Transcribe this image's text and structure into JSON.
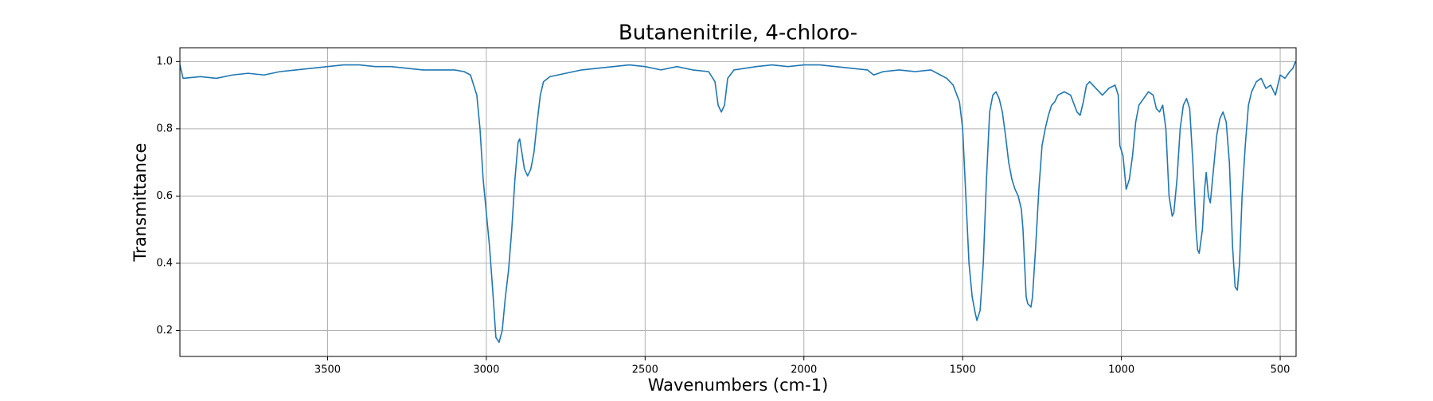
{
  "chart_data": {
    "type": "line",
    "title": "Butanenitrile, 4-chloro-",
    "x_label": "Wavenumbers (cm-1)",
    "y_label": "Transmittance",
    "color": "#1f77b4",
    "grid": true,
    "xlim": [
      3965,
      450
    ],
    "ylim": [
      0.123,
      1.041
    ],
    "xticks": [
      3500,
      3000,
      2500,
      2000,
      1500,
      1000,
      500
    ],
    "yticks": [
      0.2,
      0.4,
      0.6,
      0.8,
      {
        "value": 1,
        "label": "1.0"
      }
    ],
    "x": [
      3965,
      3955,
      3900,
      3850,
      3800,
      3750,
      3700,
      3650,
      3600,
      3550,
      3500,
      3450,
      3400,
      3350,
      3300,
      3250,
      3200,
      3150,
      3100,
      3070,
      3050,
      3030,
      3020,
      3010,
      3000,
      2990,
      2980,
      2970,
      2960,
      2950,
      2940,
      2930,
      2920,
      2910,
      2900,
      2895,
      2890,
      2880,
      2870,
      2860,
      2850,
      2840,
      2830,
      2820,
      2800,
      2750,
      2700,
      2650,
      2600,
      2550,
      2500,
      2450,
      2400,
      2350,
      2300,
      2280,
      2270,
      2260,
      2250,
      2240,
      2220,
      2150,
      2100,
      2050,
      2000,
      1950,
      1900,
      1850,
      1800,
      1780,
      1750,
      1700,
      1650,
      1600,
      1570,
      1550,
      1530,
      1510,
      1500,
      1490,
      1480,
      1470,
      1460,
      1455,
      1445,
      1435,
      1425,
      1415,
      1405,
      1395,
      1385,
      1375,
      1365,
      1355,
      1345,
      1335,
      1325,
      1315,
      1310,
      1305,
      1300,
      1295,
      1285,
      1280,
      1270,
      1260,
      1250,
      1240,
      1230,
      1220,
      1210,
      1200,
      1180,
      1160,
      1140,
      1130,
      1120,
      1110,
      1100,
      1080,
      1060,
      1040,
      1020,
      1010,
      1005,
      995,
      985,
      975,
      965,
      955,
      945,
      930,
      915,
      900,
      890,
      880,
      870,
      860,
      850,
      840,
      835,
      825,
      815,
      805,
      795,
      785,
      775,
      765,
      760,
      755,
      745,
      738,
      733,
      726,
      720,
      712,
      700,
      690,
      680,
      670,
      660,
      650,
      642,
      635,
      628,
      620,
      610,
      600,
      590,
      575,
      560,
      545,
      530,
      515,
      500,
      485,
      470,
      460,
      452
    ],
    "values": [
      0.99,
      0.95,
      0.955,
      0.95,
      0.96,
      0.965,
      0.96,
      0.97,
      0.975,
      0.98,
      0.985,
      0.99,
      0.99,
      0.985,
      0.985,
      0.98,
      0.975,
      0.975,
      0.975,
      0.97,
      0.96,
      0.9,
      0.8,
      0.65,
      0.55,
      0.45,
      0.32,
      0.18,
      0.165,
      0.2,
      0.3,
      0.38,
      0.5,
      0.65,
      0.76,
      0.77,
      0.74,
      0.68,
      0.66,
      0.68,
      0.73,
      0.82,
      0.9,
      0.94,
      0.955,
      0.965,
      0.975,
      0.98,
      0.985,
      0.99,
      0.985,
      0.975,
      0.985,
      0.975,
      0.97,
      0.94,
      0.87,
      0.85,
      0.87,
      0.95,
      0.975,
      0.985,
      0.99,
      0.985,
      0.99,
      0.99,
      0.985,
      0.98,
      0.975,
      0.96,
      0.97,
      0.975,
      0.97,
      0.975,
      0.96,
      0.95,
      0.93,
      0.88,
      0.8,
      0.6,
      0.4,
      0.3,
      0.25,
      0.23,
      0.26,
      0.4,
      0.65,
      0.85,
      0.9,
      0.91,
      0.89,
      0.85,
      0.78,
      0.7,
      0.65,
      0.62,
      0.6,
      0.56,
      0.5,
      0.4,
      0.3,
      0.28,
      0.27,
      0.3,
      0.45,
      0.62,
      0.75,
      0.8,
      0.84,
      0.87,
      0.88,
      0.9,
      0.91,
      0.9,
      0.85,
      0.84,
      0.88,
      0.93,
      0.94,
      0.92,
      0.9,
      0.92,
      0.93,
      0.9,
      0.75,
      0.72,
      0.62,
      0.65,
      0.72,
      0.82,
      0.87,
      0.89,
      0.91,
      0.9,
      0.86,
      0.85,
      0.87,
      0.8,
      0.6,
      0.54,
      0.55,
      0.65,
      0.8,
      0.87,
      0.89,
      0.86,
      0.7,
      0.5,
      0.44,
      0.43,
      0.5,
      0.62,
      0.67,
      0.6,
      0.58,
      0.66,
      0.78,
      0.83,
      0.85,
      0.82,
      0.7,
      0.45,
      0.33,
      0.32,
      0.4,
      0.6,
      0.75,
      0.87,
      0.91,
      0.94,
      0.95,
      0.92,
      0.93,
      0.9,
      0.96,
      0.95,
      0.97,
      0.98,
      1.0
    ]
  }
}
